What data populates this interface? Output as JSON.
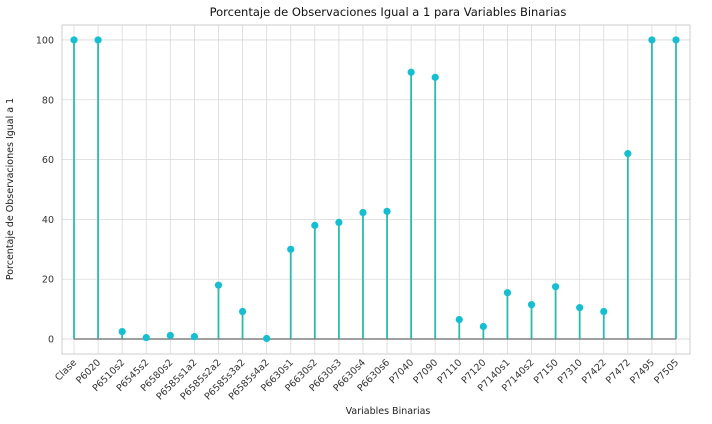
{
  "chart_data": {
    "type": "lollipop",
    "title": "Porcentaje de Observaciones Igual a 1 para Variables Binarias",
    "xlabel": "Variables Binarias",
    "ylabel": "Porcentaje de Observaciones Igual a 1",
    "ylim": [
      -5,
      105
    ],
    "yticks": [
      0,
      20,
      40,
      60,
      80,
      100
    ],
    "grid": true,
    "colors": {
      "stem": "#2bbbad",
      "marker": "#17becf",
      "baseline": "#808080",
      "frame": "#cccccc"
    },
    "categories": [
      "Clase",
      "P6020",
      "P6510s2",
      "P6545s2",
      "P6580s2",
      "P6585s1a2",
      "P6585s2a2",
      "P6585s3a2",
      "P6585s4a2",
      "P6630s1",
      "P6630s2",
      "P6630s3",
      "P6630s4",
      "P6630s6",
      "P7040",
      "P7090",
      "P7110",
      "P7120",
      "P7140s1",
      "P7140s2",
      "P7150",
      "P7310",
      "P7422",
      "P7472",
      "P7495",
      "P7505"
    ],
    "values": [
      100,
      100,
      2.5,
      0.5,
      1.2,
      0.8,
      18,
      9.2,
      0.2,
      30,
      38,
      39,
      42.3,
      42.7,
      89.2,
      87.5,
      6.5,
      4.2,
      15.5,
      11.5,
      17.5,
      10.5,
      9.2,
      62,
      100,
      100
    ]
  }
}
